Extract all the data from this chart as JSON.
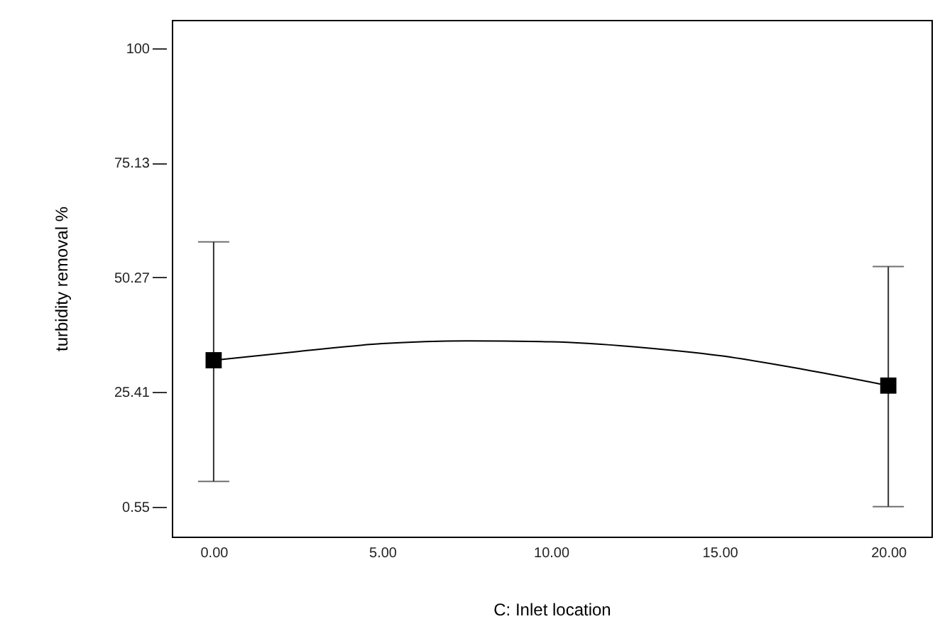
{
  "chart_data": {
    "type": "line",
    "xlabel": "C: Inlet location",
    "ylabel": "turbidity removal %",
    "xlim": [
      -1.24,
      21.28
    ],
    "ylim": [
      -5.95,
      106.1
    ],
    "xticks": [
      {
        "value": 0,
        "label": "0.00"
      },
      {
        "value": 5,
        "label": "5.00"
      },
      {
        "value": 10,
        "label": "10.00"
      },
      {
        "value": 15,
        "label": "15.00"
      },
      {
        "value": 20,
        "label": "20.00"
      }
    ],
    "yticks": [
      0.55,
      25.41,
      50.27,
      75.13,
      100
    ],
    "grid": false,
    "series": [
      {
        "color": "#000000",
        "line_style": "solid",
        "marker": "none",
        "x": [
          0,
          2.5,
          5,
          7.5,
          10,
          12.5,
          15,
          17.5,
          20
        ],
        "values": [
          32.3,
          34.2,
          35.9,
          36.5,
          36.3,
          35.2,
          33.3,
          30.3,
          26.8
        ]
      },
      {
        "type": "scatter",
        "color": "#000000",
        "marker": "square",
        "x": [
          0,
          20
        ],
        "values": [
          32.3,
          26.8
        ],
        "errors": [
          [
            6.0,
            57.95
          ],
          [
            0.55,
            52.6
          ]
        ]
      }
    ]
  }
}
